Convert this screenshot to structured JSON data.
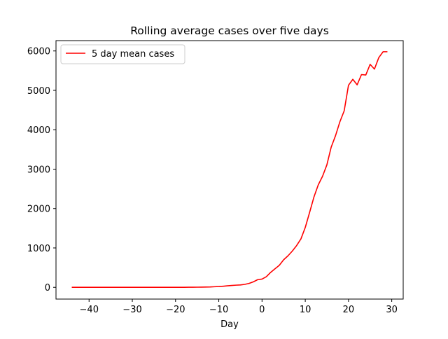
{
  "chart_data": {
    "type": "line",
    "title": "Rolling average cases over five days",
    "xlabel": "Day",
    "ylabel": "",
    "xlim": [
      -47.65,
      32.65
    ],
    "ylim": [
      -298.2,
      6262.2
    ],
    "xticks": [
      -40,
      -30,
      -20,
      -10,
      0,
      10,
      20,
      30
    ],
    "yticks": [
      0,
      1000,
      2000,
      3000,
      4000,
      5000,
      6000
    ],
    "xtick_labels": [
      "−40",
      "−30",
      "−20",
      "−10",
      "0",
      "10",
      "20",
      "30"
    ],
    "ytick_labels": [
      "0",
      "1000",
      "2000",
      "3000",
      "4000",
      "5000",
      "6000"
    ],
    "grid": false,
    "legend_position": "upper-left",
    "series": [
      {
        "name": "5 day mean cases",
        "color": "#ff0000",
        "x": [
          -44,
          -43,
          -42,
          -41,
          -40,
          -39,
          -38,
          -37,
          -36,
          -35,
          -34,
          -33,
          -32,
          -31,
          -30,
          -29,
          -28,
          -27,
          -26,
          -25,
          -24,
          -23,
          -22,
          -21,
          -20,
          -19,
          -18,
          -17,
          -16,
          -15,
          -14,
          -13,
          -12,
          -11,
          -10,
          -9,
          -8,
          -7,
          -6,
          -5,
          -4,
          -3,
          -2,
          -1,
          0,
          1,
          2,
          3,
          4,
          5,
          6,
          7,
          8,
          9,
          10,
          11,
          12,
          13,
          14,
          15,
          16,
          17,
          18,
          19,
          20,
          21,
          22,
          23,
          24,
          25,
          26,
          27,
          28,
          29
        ],
        "y": [
          0,
          0,
          0,
          0,
          0,
          0,
          0,
          0,
          0,
          0,
          1,
          1,
          1,
          1,
          1,
          0,
          0,
          0,
          0,
          0,
          0,
          0,
          0,
          1,
          1,
          1,
          1,
          2,
          3,
          4,
          6,
          8,
          10,
          15,
          20,
          28,
          38,
          48,
          55,
          60,
          75,
          100,
          140,
          195,
          210,
          270,
          380,
          470,
          560,
          700,
          800,
          920,
          1060,
          1230,
          1520,
          1900,
          2290,
          2600,
          2820,
          3110,
          3560,
          3850,
          4200,
          4480,
          5130,
          5280,
          5140,
          5400,
          5390,
          5660,
          5540,
          5830,
          5980,
          5980
        ]
      }
    ]
  }
}
